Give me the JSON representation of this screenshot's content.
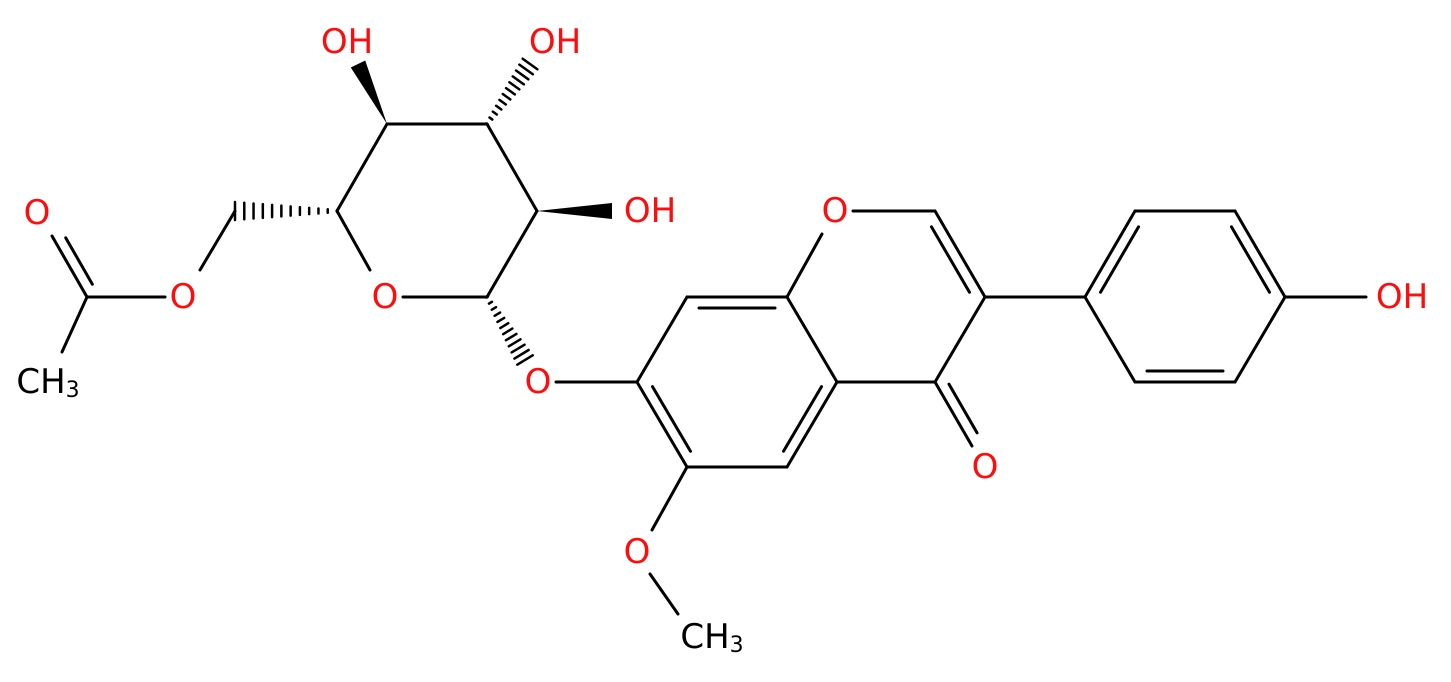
{
  "atoms": [
    "OH",
    "OH",
    "OH",
    "O",
    "O",
    "O",
    "O",
    "O",
    "OH",
    "O",
    "O"
  ],
  "methyls": [
    {
      "text": "CH",
      "subscript": "3"
    },
    {
      "text": "CH",
      "subscript": "3"
    }
  ]
}
